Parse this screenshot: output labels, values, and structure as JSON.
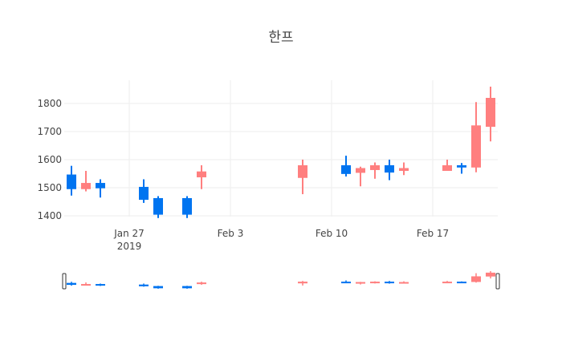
{
  "chart_data": {
    "type": "candlestick",
    "title": "한프",
    "xlabel": "",
    "ylabel": "",
    "ylim": [
      1370,
      1870
    ],
    "y_ticks": [
      1400,
      1500,
      1600,
      1700,
      1800
    ],
    "x_ticks": [
      {
        "date": "2019-01-27",
        "label": "Jan 27",
        "sublabel": "2019"
      },
      {
        "date": "2019-02-03",
        "label": "Feb 3",
        "sublabel": ""
      },
      {
        "date": "2019-02-10",
        "label": "Feb 10",
        "sublabel": ""
      },
      {
        "date": "2019-02-17",
        "label": "Feb 17",
        "sublabel": ""
      }
    ],
    "increasing_color": "#FF7F7F",
    "decreasing_color": "#0074F0",
    "grid": true,
    "rangeslider": true,
    "series": [
      {
        "date": "2019-01-23",
        "open": 1547,
        "high": 1578,
        "low": 1472,
        "close": 1495
      },
      {
        "date": "2019-01-24",
        "open": 1495,
        "high": 1560,
        "low": 1487,
        "close": 1517
      },
      {
        "date": "2019-01-25",
        "open": 1517,
        "high": 1530,
        "low": 1465,
        "close": 1498
      },
      {
        "date": "2019-01-28",
        "open": 1503,
        "high": 1530,
        "low": 1446,
        "close": 1457
      },
      {
        "date": "2019-01-29",
        "open": 1463,
        "high": 1470,
        "low": 1392,
        "close": 1404
      },
      {
        "date": "2019-01-31",
        "open": 1463,
        "high": 1470,
        "low": 1392,
        "close": 1404
      },
      {
        "date": "2019-02-01",
        "open": 1537,
        "high": 1580,
        "low": 1495,
        "close": 1558
      },
      {
        "date": "2019-02-08",
        "open": 1535,
        "high": 1600,
        "low": 1477,
        "close": 1580
      },
      {
        "date": "2019-02-11",
        "open": 1580,
        "high": 1614,
        "low": 1540,
        "close": 1549
      },
      {
        "date": "2019-02-12",
        "open": 1553,
        "high": 1575,
        "low": 1505,
        "close": 1570
      },
      {
        "date": "2019-02-13",
        "open": 1563,
        "high": 1590,
        "low": 1532,
        "close": 1580
      },
      {
        "date": "2019-02-14",
        "open": 1580,
        "high": 1600,
        "low": 1527,
        "close": 1554
      },
      {
        "date": "2019-02-15",
        "open": 1560,
        "high": 1590,
        "low": 1545,
        "close": 1570
      },
      {
        "date": "2019-02-18",
        "open": 1560,
        "high": 1600,
        "low": 1560,
        "close": 1580
      },
      {
        "date": "2019-02-19",
        "open": 1580,
        "high": 1588,
        "low": 1550,
        "close": 1572
      },
      {
        "date": "2019-02-20",
        "open": 1572,
        "high": 1805,
        "low": 1555,
        "close": 1722
      },
      {
        "date": "2019-02-21",
        "open": 1717,
        "high": 1860,
        "low": 1665,
        "close": 1820
      }
    ]
  }
}
